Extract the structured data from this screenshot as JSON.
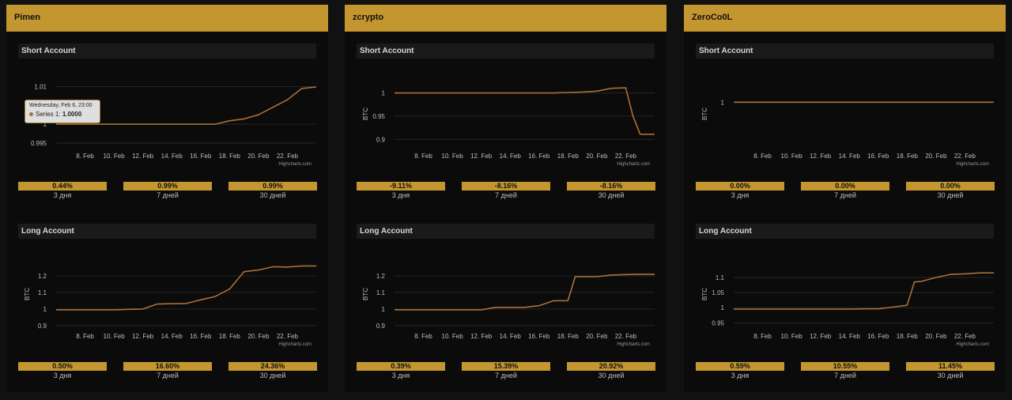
{
  "colors": {
    "accent": "#c4962f",
    "line": "#a9703b",
    "background": "#111111",
    "panel_title_bg": "#1a1a1a"
  },
  "x_ticks": [
    "8. Feb",
    "10. Feb",
    "12. Feb",
    "14. Feb",
    "16. Feb",
    "18. Feb",
    "20. Feb",
    "22. Feb"
  ],
  "credit": "Highcharts.com",
  "accounts": [
    {
      "name": "Pimen",
      "short": {
        "title": "Short Account",
        "ylabel": "",
        "ylim": [
          0.9935,
          1.012
        ],
        "yticks": [
          0.995,
          1,
          1.01
        ],
        "ytick_labels": [
          "0.995",
          "1",
          "1.01"
        ],
        "tooltip": {
          "date": "Wednesday, Feb 6, 23:00",
          "series": "Series 1",
          "value": "1.0000"
        },
        "stats": [
          {
            "value": "0.44%",
            "label": "3 дня"
          },
          {
            "value": "0.99%",
            "label": "7 дней"
          },
          {
            "value": "0.99%",
            "label": "30 дней"
          }
        ]
      },
      "long": {
        "title": "Long Account",
        "ylabel": "BTC",
        "ylim": [
          0.88,
          1.3
        ],
        "yticks": [
          0.9,
          1,
          1.1,
          1.2
        ],
        "ytick_labels": [
          "0.9",
          "1",
          "1.1",
          "1.2"
        ],
        "stats": [
          {
            "value": "0.50%",
            "label": "3 дня"
          },
          {
            "value": "16.60%",
            "label": "7 дней"
          },
          {
            "value": "24.36%",
            "label": "30 дней"
          }
        ]
      }
    },
    {
      "name": "zcrypto",
      "short": {
        "title": "Short Account",
        "ylabel": "BTC",
        "ylim": [
          0.88,
          1.03
        ],
        "yticks": [
          0.9,
          0.95,
          1
        ],
        "ytick_labels": [
          "0.9",
          "0.95",
          "1"
        ],
        "stats": [
          {
            "value": "-9.11%",
            "label": "3 дня"
          },
          {
            "value": "-8.16%",
            "label": "7 дней"
          },
          {
            "value": "-8.16%",
            "label": "30 дней"
          }
        ]
      },
      "long": {
        "title": "Long Account",
        "ylabel": "BTC",
        "ylim": [
          0.88,
          1.3
        ],
        "yticks": [
          0.9,
          1,
          1.1,
          1.2
        ],
        "ytick_labels": [
          "0.9",
          "1",
          "1.1",
          "1.2"
        ],
        "stats": [
          {
            "value": "0.39%",
            "label": "3 дня"
          },
          {
            "value": "15.39%",
            "label": "7 дней"
          },
          {
            "value": "20.92%",
            "label": "30 дней"
          }
        ]
      }
    },
    {
      "name": "ZeroCo0L",
      "short": {
        "title": "Short Account",
        "ylabel": "BTC",
        "ylim": [
          0.8,
          1.1
        ],
        "yticks": [
          1
        ],
        "ytick_labels": [
          "1"
        ],
        "stats": [
          {
            "value": "0.00%",
            "label": "3 дня"
          },
          {
            "value": "0.00%",
            "label": "7 дней"
          },
          {
            "value": "0.00%",
            "label": "30 дней"
          }
        ]
      },
      "long": {
        "title": "Long Account",
        "ylabel": "BTC",
        "ylim": [
          0.93,
          1.16
        ],
        "yticks": [
          0.95,
          1,
          1.05,
          1.1
        ],
        "ytick_labels": [
          "0.95",
          "1",
          "1.05",
          "1.1"
        ],
        "stats": [
          {
            "value": "0.59%",
            "label": "3 дня"
          },
          {
            "value": "10.55%",
            "label": "7 дней"
          },
          {
            "value": "11.45%",
            "label": "30 дней"
          }
        ]
      }
    }
  ],
  "chart_data": [
    {
      "type": "line",
      "account": "Pimen",
      "panel": "short",
      "x": [
        6,
        7,
        8,
        9,
        10,
        11,
        12,
        13,
        14,
        15,
        16,
        17,
        18,
        19,
        20,
        21,
        22,
        23,
        24
      ],
      "y": [
        1.0,
        1.0,
        1.0,
        1.0,
        1.0,
        1.0,
        1.0,
        1.0,
        1.0,
        1.0,
        1.0,
        1.0,
        1.0009,
        1.0014,
        1.0025,
        1.0045,
        1.0065,
        1.0095,
        1.0099
      ]
    },
    {
      "type": "line",
      "account": "Pimen",
      "panel": "long",
      "x": [
        6,
        8,
        10,
        11,
        12,
        13,
        14,
        15,
        16,
        17,
        18,
        19,
        20,
        21,
        22,
        23,
        24
      ],
      "y": [
        0.995,
        0.995,
        0.995,
        0.998,
        1.0,
        1.03,
        1.032,
        1.033,
        1.055,
        1.075,
        1.12,
        1.225,
        1.235,
        1.255,
        1.253,
        1.26,
        1.26
      ]
    },
    {
      "type": "line",
      "account": "zcrypto",
      "panel": "short",
      "x": [
        6,
        8,
        10,
        12,
        14,
        16,
        17,
        18,
        19,
        20,
        21,
        22,
        22.5,
        23,
        24
      ],
      "y": [
        1.0,
        1.0,
        1.0,
        1.0,
        1.0,
        1.0,
        1.0,
        1.001,
        1.002,
        1.004,
        1.01,
        1.011,
        0.95,
        0.911,
        0.911
      ]
    },
    {
      "type": "line",
      "account": "zcrypto",
      "panel": "long",
      "x": [
        6,
        8,
        10,
        12,
        13,
        14,
        15,
        16,
        17,
        18,
        18.5,
        19,
        20,
        21,
        22,
        23,
        24
      ],
      "y": [
        0.995,
        0.995,
        0.995,
        0.995,
        1.01,
        1.01,
        1.01,
        1.02,
        1.05,
        1.05,
        1.195,
        1.195,
        1.195,
        1.205,
        1.208,
        1.21,
        1.21
      ]
    },
    {
      "type": "line",
      "account": "ZeroCo0L",
      "panel": "short",
      "x": [
        6,
        24
      ],
      "y": [
        1.0,
        1.0
      ]
    },
    {
      "type": "line",
      "account": "ZeroCo0L",
      "panel": "long",
      "x": [
        6,
        8,
        10,
        12,
        14,
        15,
        16,
        17,
        18,
        18.5,
        19,
        20,
        21,
        22,
        23,
        24
      ],
      "y": [
        0.995,
        0.995,
        0.995,
        0.995,
        0.995,
        0.996,
        0.996,
        1.002,
        1.008,
        1.085,
        1.087,
        1.1,
        1.11,
        1.112,
        1.115,
        1.115
      ]
    }
  ]
}
